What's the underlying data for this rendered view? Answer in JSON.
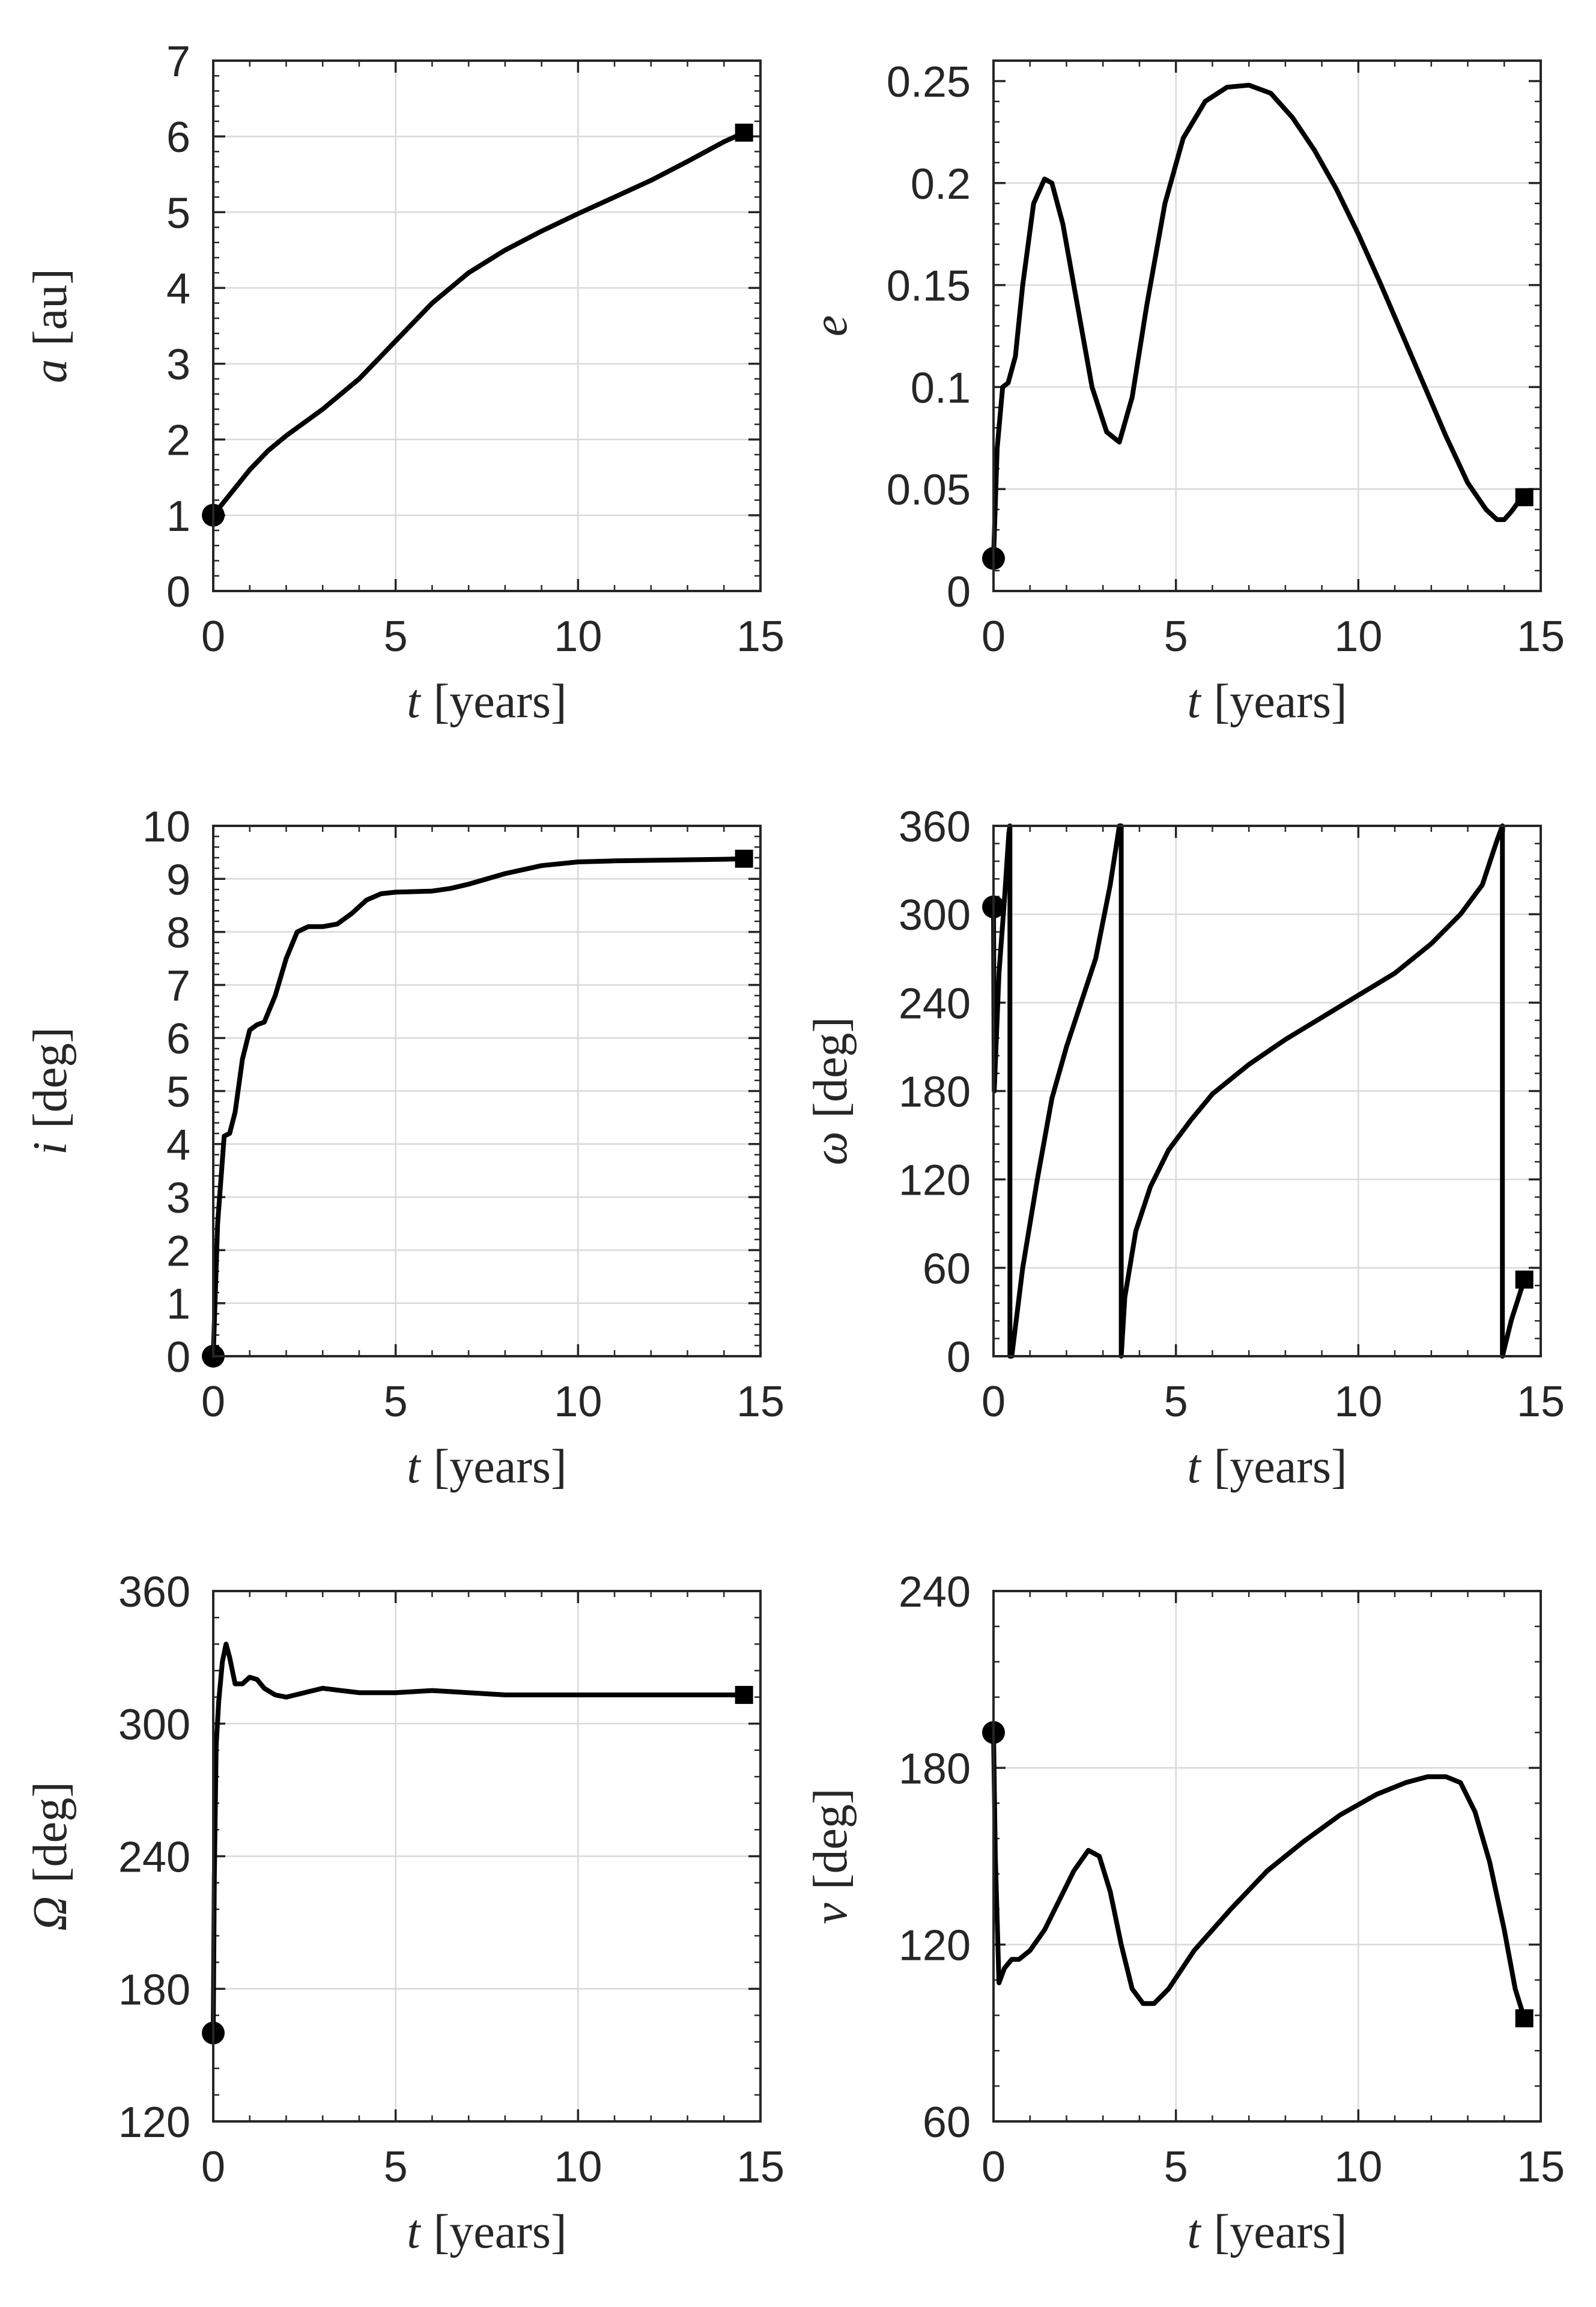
{
  "figure": {
    "x_label_symbol": "t",
    "x_label_unit": "[years]"
  },
  "chart_data": [
    {
      "type": "line",
      "panel": "semi-major-axis",
      "ylabel_symbol": "a",
      "ylabel_unit": "[au]",
      "xlim": [
        0,
        15
      ],
      "ylim": [
        0,
        7
      ],
      "xticks": [
        "0",
        "5",
        "10",
        "15"
      ],
      "yticks": [
        "0",
        "1",
        "2",
        "3",
        "4",
        "5",
        "6",
        "7"
      ],
      "ytick_values": [
        0,
        1,
        2,
        3,
        4,
        5,
        6,
        7
      ],
      "grid": true,
      "series": [
        {
          "name": "a",
          "x": [
            0,
            0.5,
            1,
            1.5,
            2,
            3,
            4,
            5,
            6,
            7,
            8,
            9,
            10,
            11,
            12,
            13,
            14,
            14.55
          ],
          "y": [
            1.0,
            1.3,
            1.6,
            1.85,
            2.05,
            2.4,
            2.8,
            3.3,
            3.8,
            4.2,
            4.5,
            4.75,
            4.98,
            5.2,
            5.42,
            5.67,
            5.93,
            6.05
          ]
        }
      ],
      "start_marker": {
        "x": 0,
        "y": 1.0
      },
      "end_marker": {
        "x": 14.55,
        "y": 6.05
      }
    },
    {
      "type": "line",
      "panel": "eccentricity",
      "ylabel_symbol": "e",
      "ylabel_unit": "",
      "xlim": [
        0,
        15
      ],
      "ylim": [
        0,
        0.26
      ],
      "xticks": [
        "0",
        "5",
        "10",
        "15"
      ],
      "yticks": [
        "0",
        "0.05",
        "0.1",
        "0.15",
        "0.2",
        "0.25"
      ],
      "ytick_values": [
        0,
        0.05,
        0.1,
        0.15,
        0.2,
        0.25
      ],
      "grid": true,
      "series": [
        {
          "name": "e",
          "x": [
            0,
            0.1,
            0.25,
            0.4,
            0.6,
            0.8,
            1.1,
            1.4,
            1.6,
            1.9,
            2.3,
            2.7,
            3.1,
            3.45,
            3.8,
            4.2,
            4.7,
            5.2,
            5.8,
            6.4,
            7.0,
            7.6,
            8.2,
            8.8,
            9.4,
            10,
            10.6,
            11.2,
            11.8,
            12.4,
            13.0,
            13.5,
            13.8,
            14.0,
            14.2,
            14.4,
            14.55
          ],
          "y": [
            0.016,
            0.07,
            0.1,
            0.102,
            0.115,
            0.15,
            0.19,
            0.202,
            0.2,
            0.18,
            0.14,
            0.1,
            0.078,
            0.073,
            0.095,
            0.14,
            0.19,
            0.222,
            0.24,
            0.247,
            0.248,
            0.244,
            0.232,
            0.216,
            0.197,
            0.175,
            0.151,
            0.126,
            0.101,
            0.076,
            0.053,
            0.04,
            0.035,
            0.035,
            0.039,
            0.044,
            0.046
          ]
        }
      ],
      "start_marker": {
        "x": 0,
        "y": 0.016
      },
      "end_marker": {
        "x": 14.55,
        "y": 0.046
      }
    },
    {
      "type": "line",
      "panel": "inclination",
      "ylabel_symbol": "i",
      "ylabel_unit": "[deg]",
      "xlim": [
        0,
        15
      ],
      "ylim": [
        0,
        10
      ],
      "xticks": [
        "0",
        "5",
        "10",
        "15"
      ],
      "yticks": [
        "0",
        "1",
        "2",
        "3",
        "4",
        "5",
        "6",
        "7",
        "8",
        "9",
        "10"
      ],
      "ytick_values": [
        0,
        1,
        2,
        3,
        4,
        5,
        6,
        7,
        8,
        9,
        10
      ],
      "grid": true,
      "series": [
        {
          "name": "i",
          "x": [
            0,
            0.12,
            0.3,
            0.45,
            0.6,
            0.8,
            1.0,
            1.2,
            1.4,
            1.7,
            2.0,
            2.3,
            2.6,
            3.0,
            3.4,
            3.8,
            4.2,
            4.6,
            5.0,
            5.5,
            6.0,
            6.5,
            7.0,
            8.0,
            9.0,
            10.0,
            11.0,
            12.0,
            13.0,
            14.0,
            14.55
          ],
          "y": [
            0,
            2.5,
            4.15,
            4.2,
            4.6,
            5.6,
            6.15,
            6.25,
            6.3,
            6.8,
            7.5,
            8.0,
            8.1,
            8.1,
            8.15,
            8.35,
            8.6,
            8.72,
            8.75,
            8.76,
            8.77,
            8.82,
            8.9,
            9.1,
            9.25,
            9.32,
            9.34,
            9.35,
            9.36,
            9.37,
            9.38
          ]
        }
      ],
      "start_marker": {
        "x": 0,
        "y": 0
      },
      "end_marker": {
        "x": 14.55,
        "y": 9.38
      }
    },
    {
      "type": "line",
      "panel": "argument-of-periapsis",
      "ylabel_symbol": "ω",
      "ylabel_unit": "[deg]",
      "xlim": [
        0,
        15
      ],
      "ylim": [
        0,
        360
      ],
      "xticks": [
        "0",
        "5",
        "10",
        "15"
      ],
      "yticks": [
        "0",
        "60",
        "120",
        "180",
        "240",
        "300",
        "360"
      ],
      "ytick_values": [
        0,
        60,
        120,
        180,
        240,
        300,
        360
      ],
      "grid": true,
      "series": [
        {
          "name": "omega",
          "x": [
            0,
            0.02,
            0.15,
            0.3,
            0.42,
            0.45,
            0.45,
            0.5,
            0.8,
            1.2,
            1.6,
            2.0,
            2.4,
            2.8,
            3.2,
            3.45,
            3.5,
            3.5,
            3.6,
            3.9,
            4.3,
            4.8,
            5.4,
            6.0,
            7.0,
            8.0,
            9.0,
            10.0,
            11.0,
            12.0,
            12.8,
            13.4,
            13.8,
            13.95,
            13.95,
            14.2,
            14.55
          ],
          "y": [
            305,
            180,
            260,
            310,
            355,
            360,
            0,
            0,
            60,
            120,
            175,
            210,
            240,
            270,
            320,
            360,
            360,
            0,
            40,
            85,
            115,
            140,
            160,
            178,
            198,
            215,
            230,
            245,
            260,
            280,
            300,
            320,
            350,
            360,
            0,
            25,
            52
          ]
        }
      ],
      "start_marker": {
        "x": 0,
        "y": 305
      },
      "end_marker": {
        "x": 14.55,
        "y": 52
      }
    },
    {
      "type": "line",
      "panel": "right-ascension-of-ascending-node",
      "ylabel_symbol": "Ω",
      "ylabel_unit": "[deg]",
      "xlim": [
        0,
        15
      ],
      "ylim": [
        120,
        360
      ],
      "xticks": [
        "0",
        "5",
        "10",
        "15"
      ],
      "yticks": [
        "120",
        "180",
        "240",
        "300",
        "360"
      ],
      "ytick_values": [
        120,
        180,
        240,
        300,
        360
      ],
      "grid": true,
      "series": [
        {
          "name": "Omega",
          "x": [
            0,
            0.03,
            0.08,
            0.15,
            0.25,
            0.35,
            0.45,
            0.6,
            0.8,
            1.0,
            1.2,
            1.4,
            1.7,
            2.0,
            2.5,
            3.0,
            3.5,
            4.0,
            5.0,
            6.0,
            7.0,
            8.0,
            9.0,
            10.0,
            11.0,
            12.0,
            13.0,
            14.0,
            14.55
          ],
          "y": [
            160,
            230,
            290,
            310,
            328,
            336,
            330,
            318,
            318,
            321,
            320,
            316,
            313,
            312,
            314,
            316,
            315,
            314,
            314,
            315,
            314,
            313,
            313,
            313,
            313,
            313,
            313,
            313,
            313
          ]
        }
      ],
      "start_marker": {
        "x": 0,
        "y": 160
      },
      "end_marker": {
        "x": 14.55,
        "y": 313
      }
    },
    {
      "type": "line",
      "panel": "true-anomaly",
      "ylabel_symbol": "ν",
      "ylabel_unit": "[deg]",
      "xlim": [
        0,
        15
      ],
      "ylim": [
        60,
        240
      ],
      "xticks": [
        "0",
        "5",
        "10",
        "15"
      ],
      "yticks": [
        "60",
        "120",
        "180",
        "240"
      ],
      "ytick_values": [
        60,
        120,
        180,
        240
      ],
      "grid": true,
      "series": [
        {
          "name": "nu",
          "x": [
            0,
            0.05,
            0.15,
            0.3,
            0.5,
            0.7,
            1.0,
            1.4,
            1.8,
            2.2,
            2.6,
            2.9,
            3.2,
            3.5,
            3.8,
            4.1,
            4.4,
            4.8,
            5.5,
            6.5,
            7.5,
            8.5,
            9.5,
            10.5,
            11.3,
            11.9,
            12.4,
            12.8,
            13.2,
            13.6,
            14.0,
            14.3,
            14.55
          ],
          "y": [
            192,
            150,
            107,
            112,
            115,
            115,
            118,
            125,
            135,
            145,
            152,
            150,
            138,
            120,
            105,
            100,
            100,
            105,
            118,
            132,
            145,
            155,
            164,
            171,
            175,
            177,
            177,
            175,
            165,
            148,
            125,
            105,
            95
          ]
        }
      ],
      "start_marker": {
        "x": 0,
        "y": 192
      },
      "end_marker": {
        "x": 14.55,
        "y": 95
      }
    }
  ]
}
